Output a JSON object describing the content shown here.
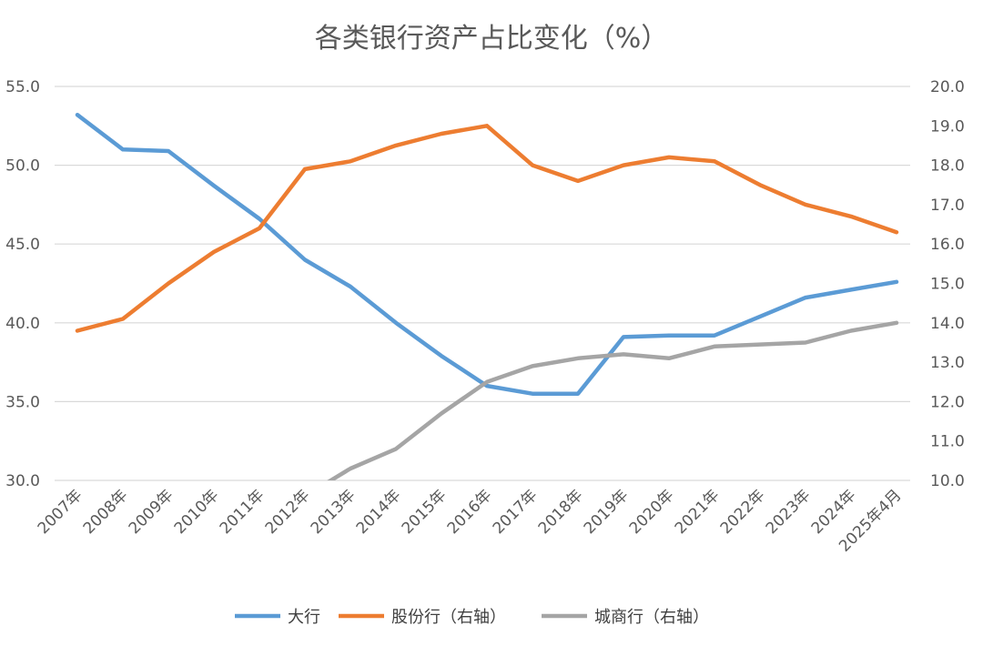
{
  "chart_data": {
    "type": "line",
    "title": "各类银行资产占比变化（%）",
    "categories": [
      "2007年",
      "2008年",
      "2009年",
      "2010年",
      "2011年",
      "2012年",
      "2013年",
      "2014年",
      "2015年",
      "2016年",
      "2017年",
      "2018年",
      "2019年",
      "2020年",
      "2021年",
      "2022年",
      "2023年",
      "2024年",
      "2025年4月"
    ],
    "y_left": {
      "ylim": [
        30,
        55
      ],
      "ticks": [
        "30.0",
        "35.0",
        "40.0",
        "45.0",
        "50.0",
        "55.0"
      ]
    },
    "y_right": {
      "ylim": [
        10,
        20
      ],
      "ticks": [
        "10.0",
        "11.0",
        "12.0",
        "13.0",
        "14.0",
        "15.0",
        "16.0",
        "17.0",
        "18.0",
        "19.0",
        "20.0"
      ]
    },
    "grid": true,
    "legend_position": "bottom",
    "series": [
      {
        "name": "大行",
        "axis": "left",
        "color": "#5B9BD5",
        "values": [
          53.2,
          51.0,
          50.9,
          48.7,
          46.6,
          44.0,
          42.3,
          40.0,
          37.9,
          36.0,
          35.5,
          35.5,
          39.1,
          39.2,
          39.2,
          40.4,
          41.6,
          42.1,
          42.6
        ]
      },
      {
        "name": "股份行（右轴）",
        "axis": "right",
        "color": "#ED7D31",
        "values": [
          13.8,
          14.1,
          15.0,
          15.8,
          16.4,
          17.9,
          18.1,
          18.5,
          18.8,
          19.0,
          18.0,
          17.6,
          18.0,
          18.2,
          18.1,
          17.5,
          17.0,
          16.7,
          16.3
        ]
      },
      {
        "name": "城商行（右轴）",
        "axis": "right",
        "color": "#A5A5A5",
        "values": [
          null,
          null,
          null,
          null,
          null,
          9.6,
          10.3,
          10.8,
          11.7,
          12.5,
          12.9,
          13.1,
          13.2,
          13.1,
          13.4,
          13.45,
          13.5,
          13.8,
          14.0
        ]
      }
    ]
  }
}
